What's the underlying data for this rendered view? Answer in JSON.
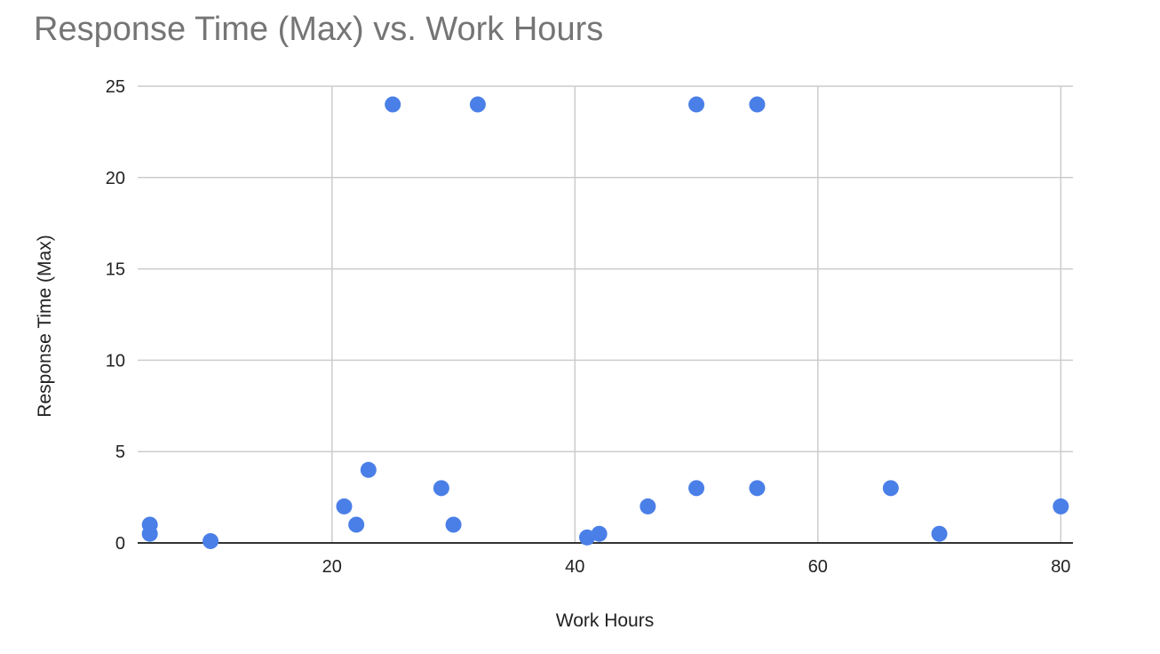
{
  "chart_data": {
    "type": "scatter",
    "title": "Response Time (Max) vs. Work Hours",
    "xlabel": "Work Hours",
    "ylabel": "Response Time (Max)",
    "xlim": [
      4,
      81
    ],
    "ylim": [
      0,
      25
    ],
    "x_ticks": [
      20,
      40,
      60,
      80
    ],
    "y_ticks": [
      0,
      5,
      10,
      15,
      20,
      25
    ],
    "grid": true,
    "legend": "none",
    "point_color": "#4a7fe8",
    "series": [
      {
        "points": [
          {
            "x": 5,
            "y": 1
          },
          {
            "x": 5,
            "y": 0.5
          },
          {
            "x": 10,
            "y": 0.1
          },
          {
            "x": 21,
            "y": 2
          },
          {
            "x": 22,
            "y": 1
          },
          {
            "x": 23,
            "y": 4
          },
          {
            "x": 25,
            "y": 24
          },
          {
            "x": 29,
            "y": 3
          },
          {
            "x": 30,
            "y": 1
          },
          {
            "x": 32,
            "y": 24
          },
          {
            "x": 41,
            "y": 0.3
          },
          {
            "x": 42,
            "y": 0.5
          },
          {
            "x": 46,
            "y": 2
          },
          {
            "x": 50,
            "y": 24
          },
          {
            "x": 50,
            "y": 3
          },
          {
            "x": 55,
            "y": 24
          },
          {
            "x": 55,
            "y": 3
          },
          {
            "x": 66,
            "y": 3
          },
          {
            "x": 70,
            "y": 0.5
          },
          {
            "x": 80,
            "y": 2
          }
        ]
      }
    ]
  }
}
